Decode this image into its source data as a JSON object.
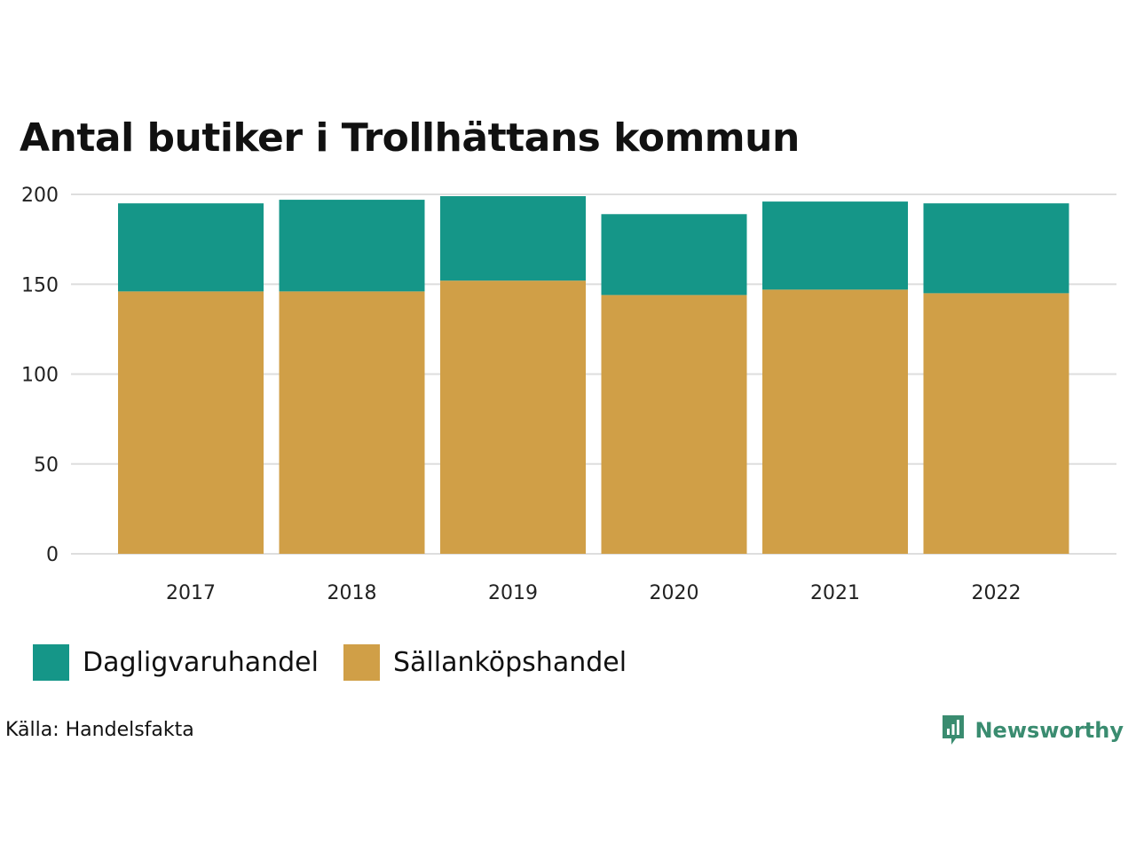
{
  "chart_data": {
    "type": "bar",
    "stacked": true,
    "title": "Antal butiker i Trollhättans kommun",
    "categories": [
      "2017",
      "2018",
      "2019",
      "2020",
      "2021",
      "2022"
    ],
    "series": [
      {
        "name": "Sällanköpshandel",
        "color": "#d09f47",
        "values": [
          146,
          146,
          152,
          144,
          147,
          145
        ]
      },
      {
        "name": "Dagligvaruhandel",
        "color": "#159688",
        "values": [
          49,
          51,
          47,
          45,
          49,
          50
        ]
      }
    ],
    "yticks": [
      0,
      50,
      100,
      150,
      200
    ],
    "ylim": [
      0,
      200
    ],
    "xlabel": "",
    "ylabel": "",
    "grid": true,
    "legend_position": "bottom-left"
  },
  "legend": [
    {
      "label": "Dagligvaruhandel",
      "color": "#159688"
    },
    {
      "label": "Sällanköpshandel",
      "color": "#d09f47"
    }
  ],
  "source": "Källa: Handelsfakta",
  "brand": {
    "name": "Newsworthy",
    "color": "#3a8c70",
    "icon": "newsworthy-logo-icon"
  }
}
